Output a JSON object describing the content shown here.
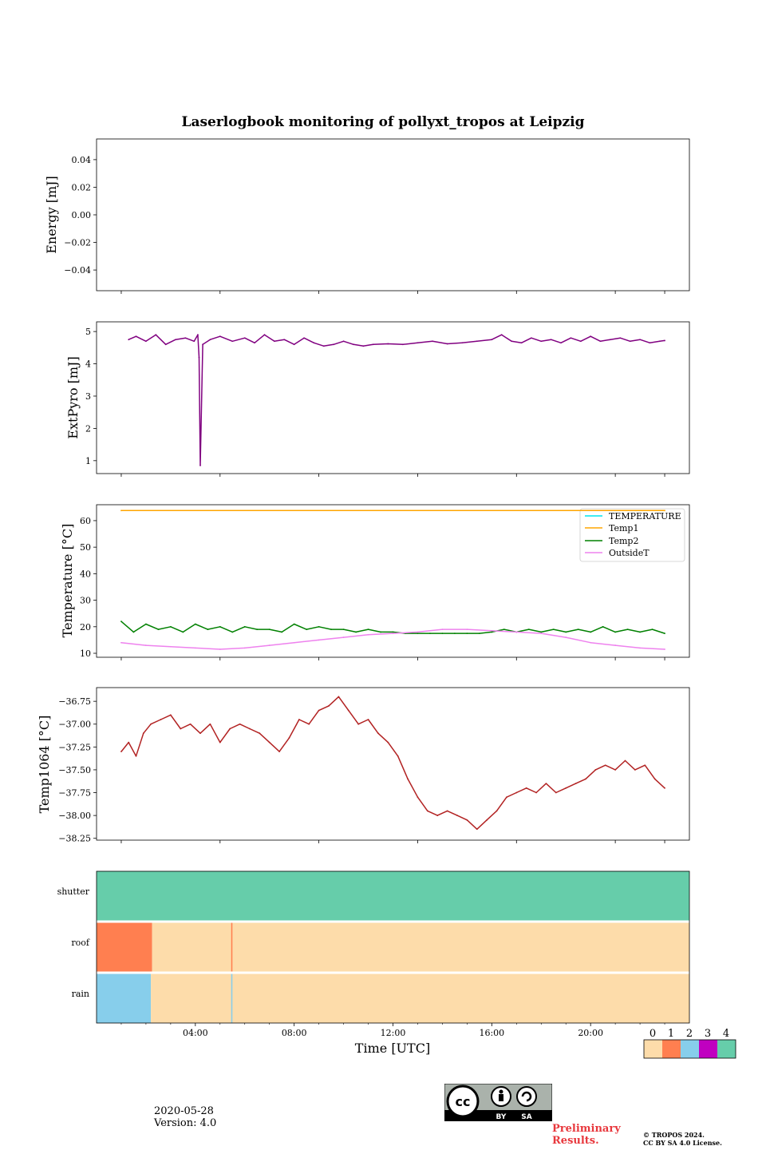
{
  "figure": {
    "title": "Laserlogbook monitoring of pollyxt_tropos at Leipzig",
    "date": "2020-05-28",
    "version": "Version: 4.0",
    "preliminary": "Preliminary Results.",
    "preliminary_lines": [
      "Preliminary",
      "Results."
    ],
    "copyright": [
      "© TROPOS 2024.",
      "CC BY SA 4.0 License."
    ],
    "license_badge": [
      "BY",
      "SA"
    ]
  },
  "colors": {
    "extpyro": "#800080",
    "temperature": "#00e5ee",
    "temp1": "#ffa500",
    "temp2": "#008000",
    "outsideT": "#ee82ee",
    "temp1064": "#b22222",
    "status0": "#fddcaa",
    "status1": "#ff7f50",
    "status2": "#87ceeb",
    "status3": "#c000c0",
    "status4": "#66cdaa"
  },
  "chart_data": [
    {
      "id": "energy",
      "type": "line",
      "ylabel": "Energy [mJ]",
      "yticks": [
        0.04,
        0.02,
        0.0,
        -0.02,
        -0.04
      ],
      "ytick_labels": [
        "0.04",
        "0.02",
        "0.00",
        "−0.02",
        "−0.04"
      ],
      "ylim": [
        -0.055,
        0.055
      ],
      "series": []
    },
    {
      "id": "extpyro",
      "type": "line",
      "ylabel": "ExtPyro [mJ]",
      "yticks": [
        5,
        4,
        3,
        2,
        1
      ],
      "ytick_labels": [
        "5",
        "4",
        "3",
        "2",
        "1"
      ],
      "ylim": [
        0.6,
        5.3
      ],
      "series": [
        {
          "name": "ExtPyro",
          "x": [
            1.3,
            1.6,
            2.0,
            2.4,
            2.8,
            3.2,
            3.6,
            3.95,
            4.1,
            4.15,
            4.2,
            4.3,
            4.6,
            5.0,
            5.5,
            6.0,
            6.4,
            6.8,
            7.2,
            7.6,
            8.0,
            8.4,
            8.8,
            9.2,
            9.6,
            10.0,
            10.4,
            10.8,
            11.2,
            11.8,
            12.4,
            13.0,
            13.6,
            14.2,
            14.8,
            15.4,
            16.0,
            16.4,
            16.8,
            17.2,
            17.6,
            18.0,
            18.4,
            18.8,
            19.2,
            19.6,
            20.0,
            20.4,
            20.8,
            21.2,
            21.6,
            22.0,
            22.4,
            22.8,
            23.0
          ],
          "values": [
            4.75,
            4.85,
            4.7,
            4.9,
            4.6,
            4.75,
            4.8,
            4.7,
            4.9,
            4.2,
            0.85,
            4.6,
            4.75,
            4.85,
            4.7,
            4.8,
            4.65,
            4.9,
            4.7,
            4.75,
            4.6,
            4.8,
            4.65,
            4.55,
            4.6,
            4.7,
            4.6,
            4.55,
            4.6,
            4.62,
            4.6,
            4.65,
            4.7,
            4.62,
            4.65,
            4.7,
            4.75,
            4.9,
            4.7,
            4.65,
            4.8,
            4.7,
            4.75,
            4.65,
            4.8,
            4.7,
            4.85,
            4.7,
            4.75,
            4.8,
            4.7,
            4.75,
            4.65,
            4.7,
            4.72
          ]
        }
      ]
    },
    {
      "id": "temperature",
      "type": "line",
      "ylabel": "Temperature [°C]",
      "yticks": [
        60,
        50,
        40,
        30,
        20,
        10
      ],
      "ytick_labels": [
        "60",
        "50",
        "40",
        "30",
        "20",
        "10"
      ],
      "ylim": [
        8.5,
        66
      ],
      "legend": {
        "position": "top-right",
        "entries": [
          "TEMPERATURE",
          "Temp1",
          "Temp2",
          "OutsideT"
        ]
      },
      "series": [
        {
          "name": "TEMPERATURE",
          "x": [],
          "values": []
        },
        {
          "name": "Temp1",
          "x": [
            1.0,
            23.0
          ],
          "values": [
            63.8,
            63.8
          ]
        },
        {
          "name": "Temp2",
          "x": [
            1.0,
            1.5,
            2.0,
            2.5,
            3.0,
            3.5,
            4.0,
            4.5,
            5.0,
            5.5,
            6.0,
            6.5,
            7.0,
            7.5,
            8.0,
            8.5,
            9.0,
            9.5,
            10.0,
            10.5,
            11.0,
            11.5,
            12.0,
            12.5,
            13.0,
            13.5,
            14.0,
            14.5,
            15.0,
            15.5,
            16.0,
            16.5,
            17.0,
            17.5,
            18.0,
            18.5,
            19.0,
            19.5,
            20.0,
            20.5,
            21.0,
            21.5,
            22.0,
            22.5,
            23.0
          ],
          "values": [
            22,
            18,
            21,
            19,
            20,
            18,
            21,
            19,
            20,
            18,
            20,
            19,
            19,
            18,
            21,
            19,
            20,
            19,
            19,
            18,
            19,
            18,
            18,
            17.5,
            17.5,
            17.5,
            17.5,
            17.5,
            17.5,
            17.5,
            18,
            19,
            18,
            19,
            18,
            19,
            18,
            19,
            18,
            20,
            18,
            19,
            18,
            19,
            17.5
          ]
        },
        {
          "name": "OutsideT",
          "x": [
            1.0,
            2.0,
            3.0,
            4.0,
            5.0,
            6.0,
            7.0,
            8.0,
            9.0,
            10.0,
            11.0,
            12.0,
            13.0,
            14.0,
            15.0,
            16.0,
            17.0,
            18.0,
            19.0,
            20.0,
            21.0,
            22.0,
            23.0
          ],
          "values": [
            14,
            13,
            12.5,
            12,
            11.5,
            12,
            13,
            14,
            15,
            16,
            17,
            17.5,
            18,
            19,
            19,
            18.5,
            18,
            17.5,
            16,
            14,
            13,
            12,
            11.5
          ]
        }
      ]
    },
    {
      "id": "temp1064",
      "type": "line",
      "ylabel": "Temp1064 [°C]",
      "yticks": [
        -36.75,
        -37.0,
        -37.25,
        -37.5,
        -37.75,
        -38.0,
        -38.25
      ],
      "ytick_labels": [
        "−36.75",
        "−37.00",
        "−37.25",
        "−37.50",
        "−37.75",
        "−38.00",
        "−38.25"
      ],
      "ylim": [
        -38.27,
        -36.6
      ],
      "series": [
        {
          "name": "Temp1064",
          "x": [
            1.0,
            1.3,
            1.6,
            1.9,
            2.2,
            2.6,
            3.0,
            3.4,
            3.8,
            4.2,
            4.6,
            5.0,
            5.4,
            5.8,
            6.2,
            6.6,
            7.0,
            7.4,
            7.8,
            8.2,
            8.6,
            9.0,
            9.4,
            9.8,
            10.2,
            10.6,
            11.0,
            11.4,
            11.8,
            12.2,
            12.6,
            13.0,
            13.4,
            13.8,
            14.2,
            14.6,
            15.0,
            15.4,
            15.8,
            16.2,
            16.6,
            17.0,
            17.4,
            17.8,
            18.2,
            18.6,
            19.0,
            19.4,
            19.8,
            20.2,
            20.6,
            21.0,
            21.4,
            21.8,
            22.2,
            22.6,
            23.0
          ],
          "values": [
            -37.3,
            -37.2,
            -37.35,
            -37.1,
            -37.0,
            -36.95,
            -36.9,
            -37.05,
            -37.0,
            -37.1,
            -37.0,
            -37.2,
            -37.05,
            -37.0,
            -37.05,
            -37.1,
            -37.2,
            -37.3,
            -37.15,
            -36.95,
            -37.0,
            -36.85,
            -36.8,
            -36.7,
            -36.85,
            -37.0,
            -36.95,
            -37.1,
            -37.2,
            -37.35,
            -37.6,
            -37.8,
            -37.95,
            -38.0,
            -37.95,
            -38.0,
            -38.05,
            -38.15,
            -38.05,
            -37.95,
            -37.8,
            -37.75,
            -37.7,
            -37.75,
            -37.65,
            -37.75,
            -37.7,
            -37.65,
            -37.6,
            -37.5,
            -37.45,
            -37.5,
            -37.4,
            -37.5,
            -37.45,
            -37.6,
            -37.7
          ]
        }
      ]
    },
    {
      "id": "status",
      "type": "heatmap",
      "rows": [
        "shutter",
        "roof",
        "rain"
      ],
      "xlabel": "Time [UTC]",
      "xticks": [
        4,
        8,
        12,
        16,
        20
      ],
      "xtick_labels": [
        "04:00",
        "08:00",
        "12:00",
        "16:00",
        "20:00"
      ],
      "xlim": [
        0,
        24
      ],
      "segments": {
        "shutter": [
          {
            "start": 0,
            "end": 24,
            "value": 4
          }
        ],
        "roof": [
          {
            "start": 0,
            "end": 2.25,
            "value": 1
          },
          {
            "start": 2.25,
            "end": 24,
            "value": 0
          },
          {
            "start": 5.45,
            "end": 5.5,
            "value": 1
          }
        ],
        "rain": [
          {
            "start": 0,
            "end": 2.2,
            "value": 2
          },
          {
            "start": 2.2,
            "end": 24,
            "value": 0
          },
          {
            "start": 5.45,
            "end": 5.5,
            "value": 2
          }
        ]
      },
      "colorbar": {
        "ticks": [
          "0",
          "1",
          "2",
          "3",
          "4"
        ]
      }
    }
  ]
}
